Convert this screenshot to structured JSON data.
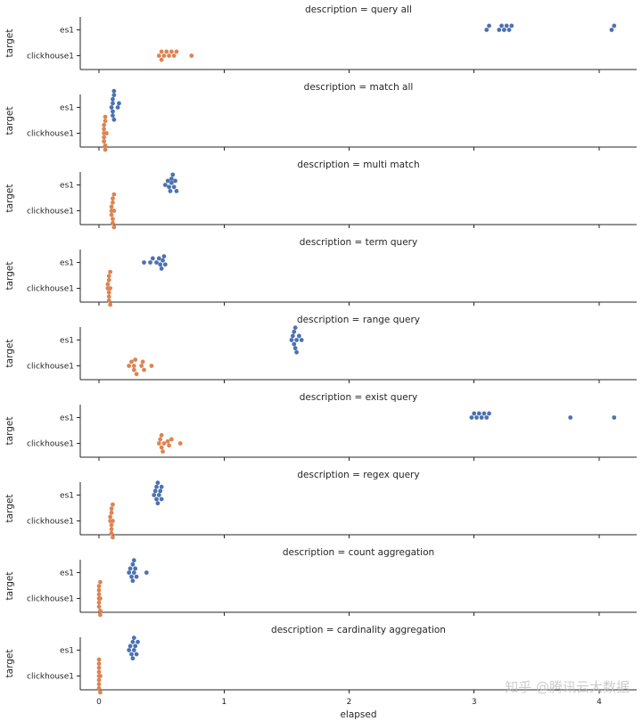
{
  "chart_data": {
    "type": "scatter",
    "subtype": "swarm",
    "facet_var": "description",
    "xlabel": "elapsed",
    "ylabel": "target",
    "xlim": [
      -0.15,
      4.3
    ],
    "xticks": [
      0,
      1,
      2,
      3,
      4
    ],
    "categories": [
      "es1",
      "clickhouse1"
    ],
    "colors": {
      "es1": "#4c72b0",
      "clickhouse1": "#dd8452"
    },
    "panels": [
      {
        "title": "description = query all",
        "es1": [
          3.1,
          3.12,
          3.2,
          3.22,
          3.24,
          3.26,
          3.28,
          3.3,
          4.1,
          4.12
        ],
        "clickhouse1": [
          0.48,
          0.5,
          0.5,
          0.52,
          0.54,
          0.56,
          0.58,
          0.6,
          0.62,
          0.74
        ]
      },
      {
        "title": "description = match all",
        "es1": [
          0.1,
          0.11,
          0.11,
          0.11,
          0.11,
          0.12,
          0.12,
          0.12,
          0.15,
          0.16
        ],
        "clickhouse1": [
          0.04,
          0.04,
          0.04,
          0.04,
          0.04,
          0.05,
          0.05,
          0.05,
          0.05,
          0.06
        ]
      },
      {
        "title": "description = multi match",
        "es1": [
          0.53,
          0.55,
          0.56,
          0.57,
          0.58,
          0.58,
          0.59,
          0.6,
          0.61,
          0.62
        ],
        "clickhouse1": [
          0.1,
          0.1,
          0.1,
          0.11,
          0.11,
          0.11,
          0.11,
          0.12,
          0.12,
          0.12
        ]
      },
      {
        "title": "description = term query",
        "es1": [
          0.36,
          0.41,
          0.43,
          0.46,
          0.48,
          0.49,
          0.5,
          0.51,
          0.52,
          0.53
        ],
        "clickhouse1": [
          0.07,
          0.07,
          0.08,
          0.08,
          0.08,
          0.08,
          0.08,
          0.09,
          0.09,
          0.09
        ]
      },
      {
        "title": "description = range query",
        "es1": [
          1.54,
          1.55,
          1.56,
          1.56,
          1.57,
          1.57,
          1.58,
          1.58,
          1.6,
          1.62
        ],
        "clickhouse1": [
          0.24,
          0.26,
          0.28,
          0.28,
          0.29,
          0.3,
          0.34,
          0.35,
          0.36,
          0.42
        ]
      },
      {
        "title": "description = exist query",
        "es1": [
          2.98,
          3.0,
          3.02,
          3.04,
          3.06,
          3.08,
          3.1,
          3.12,
          3.77,
          4.12
        ],
        "clickhouse1": [
          0.48,
          0.49,
          0.5,
          0.5,
          0.51,
          0.52,
          0.55,
          0.56,
          0.58,
          0.65
        ]
      },
      {
        "title": "description = regex query",
        "es1": [
          0.44,
          0.45,
          0.46,
          0.46,
          0.47,
          0.47,
          0.48,
          0.49,
          0.5,
          0.5
        ],
        "clickhouse1": [
          0.09,
          0.09,
          0.1,
          0.1,
          0.1,
          0.1,
          0.1,
          0.11,
          0.11,
          0.11
        ]
      },
      {
        "title": "description = count aggregation",
        "es1": [
          0.24,
          0.25,
          0.26,
          0.27,
          0.27,
          0.28,
          0.28,
          0.29,
          0.3,
          0.38
        ],
        "clickhouse1": [
          0.0,
          0.0,
          0.0,
          0.0,
          0.0,
          0.0,
          0.01,
          0.01,
          0.01,
          0.01
        ]
      },
      {
        "title": "description = cardinality aggregation",
        "es1": [
          0.24,
          0.25,
          0.26,
          0.27,
          0.27,
          0.28,
          0.28,
          0.29,
          0.3,
          0.31
        ],
        "clickhouse1": [
          0.0,
          0.0,
          0.0,
          0.0,
          0.0,
          0.0,
          0.0,
          0.0,
          0.01,
          0.01
        ]
      }
    ]
  },
  "watermark": "知乎 @腾讯云大数据"
}
